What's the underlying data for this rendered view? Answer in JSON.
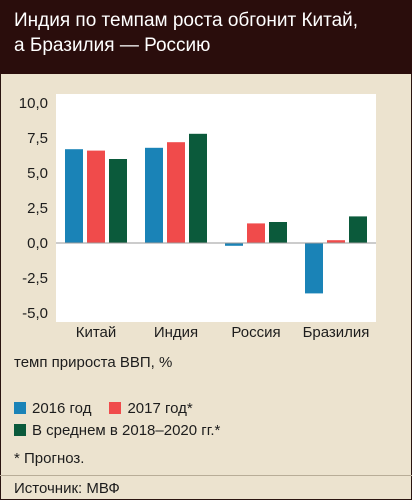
{
  "title_lines": [
    "Индия по темпам роста обгонит Китай,",
    "а Бразилия — Россию"
  ],
  "caption": "темп прироста ВВП, %",
  "note": "* Прогноз.",
  "source": "Источник: МВФ",
  "colors": {
    "header_bg": "#2a0d0c",
    "page_bg": "#ece3cf",
    "s2016": "#1a83b7",
    "s2017": "#f04b4b",
    "savg": "#0b5a3b"
  },
  "chart_data": {
    "type": "bar",
    "categories": [
      "Китай",
      "Индия",
      "Россия",
      "Бразилия"
    ],
    "series": [
      {
        "name": "2016 год",
        "values": [
          6.7,
          6.8,
          -0.2,
          -3.6
        ]
      },
      {
        "name": "2017 год*",
        "values": [
          6.6,
          7.2,
          1.4,
          0.2
        ]
      },
      {
        "name": "В среднем в 2018–2020 гг.*",
        "values": [
          6.0,
          7.8,
          1.5,
          1.9
        ]
      }
    ],
    "ylim": [
      -5.0,
      10.0
    ],
    "yticks": [
      "10,0",
      "7,5",
      "5,0",
      "2,5",
      "0,0",
      "-2,5",
      "-5,0"
    ],
    "ytick_values": [
      10,
      7.5,
      5,
      2.5,
      0,
      -2.5,
      -5
    ],
    "grid": false,
    "legend_position": "bottom"
  }
}
